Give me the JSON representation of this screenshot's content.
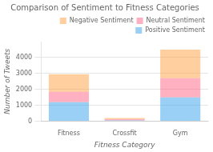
{
  "chart_data": {
    "type": "bar",
    "title": "Comparison of Sentiment to Fitness Categories",
    "xlabel": "Fitness Category",
    "ylabel": "Number of Tweets",
    "categories": [
      "Fitness",
      "Crossfit",
      "Gym"
    ],
    "series": [
      {
        "name": "Positive Sentiment",
        "values": [
          1200,
          60,
          1500
        ]
      },
      {
        "name": "Neutral Sentiment",
        "values": [
          650,
          70,
          1200
        ]
      },
      {
        "name": "Negative Sentiment",
        "values": [
          1100,
          80,
          1800
        ]
      }
    ],
    "stacked": true,
    "ylim": [
      0,
      5000
    ],
    "yticks": [
      0,
      1000,
      2000,
      3000,
      4000
    ],
    "grid": true,
    "legend": "upper right"
  }
}
